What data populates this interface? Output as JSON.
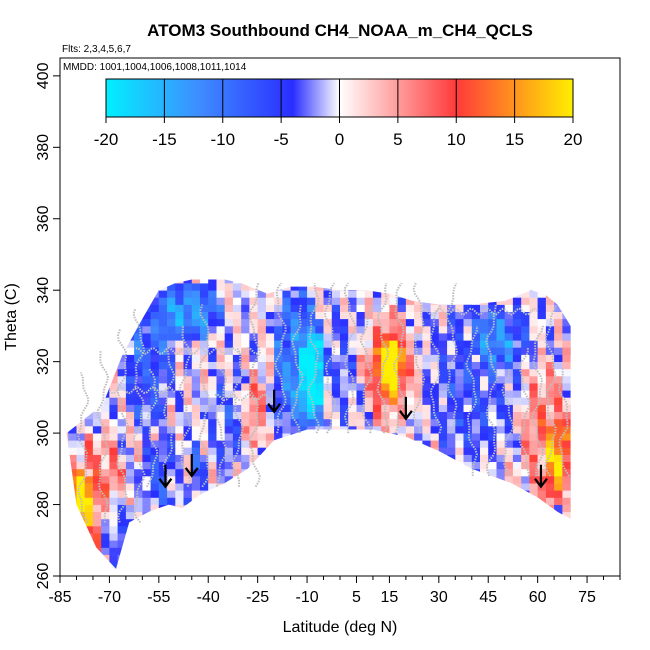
{
  "chart_data": {
    "type": "heatmap",
    "title": "ATOM3 Southbound CH4_NOAA_m_CH4_QCLS",
    "flights_label": "Flts: 2,3,4,5,6,7",
    "mmdd_label": "MMDD: 1001,1004,1006,1008,1011,1014",
    "xlabel": "Latitude (deg N)",
    "ylabel": "Theta (C)",
    "xlim": [
      -85,
      85
    ],
    "ylim": [
      260,
      405
    ],
    "x_ticks": [
      "-85",
      "-70",
      "-55",
      "-40",
      "-25",
      "-10",
      "5",
      "15",
      "30",
      "45",
      "60",
      "75"
    ],
    "x_tick_values": [
      -85,
      -70,
      -55,
      -40,
      -25,
      -10,
      5,
      15,
      30,
      45,
      60,
      75
    ],
    "y_ticks": [
      "260",
      "280",
      "300",
      "320",
      "340",
      "360",
      "380",
      "400"
    ],
    "y_tick_values": [
      260,
      280,
      300,
      320,
      340,
      360,
      380,
      400
    ],
    "colorbar": {
      "min": -20,
      "max": 20,
      "tick_labels": [
        "-20",
        "-15",
        "-10",
        "-5",
        "0",
        "5",
        "10",
        "15",
        "20"
      ],
      "tick_values": [
        -20,
        -15,
        -10,
        -5,
        0,
        5,
        10,
        15,
        20
      ],
      "colors": [
        "#00f0ff",
        "#3f8cff",
        "#2a2eff",
        "#ffffff",
        "#ff3a3a",
        "#ffee00"
      ]
    },
    "boundary_top": [
      [
        -72,
        308
      ],
      [
        -66,
        322
      ],
      [
        -60,
        332
      ],
      [
        -55,
        340
      ],
      [
        -50,
        342
      ],
      [
        -45,
        343
      ],
      [
        -40,
        343
      ],
      [
        -35,
        343
      ],
      [
        -30,
        342
      ],
      [
        -22,
        339
      ],
      [
        -15,
        341
      ],
      [
        -8,
        341
      ],
      [
        0,
        340
      ],
      [
        8,
        340
      ],
      [
        15,
        339
      ],
      [
        22,
        337
      ],
      [
        30,
        336
      ],
      [
        40,
        336
      ],
      [
        50,
        337
      ],
      [
        58,
        340
      ],
      [
        62,
        339
      ],
      [
        66,
        336
      ],
      [
        70,
        330
      ]
    ],
    "boundary_bottom": [
      [
        70,
        276
      ],
      [
        66,
        278
      ],
      [
        60,
        282
      ],
      [
        52,
        286
      ],
      [
        40,
        290
      ],
      [
        30,
        295
      ],
      [
        20,
        299
      ],
      [
        10,
        301
      ],
      [
        0,
        301
      ],
      [
        -10,
        301
      ],
      [
        -20,
        298
      ],
      [
        -28,
        290
      ],
      [
        -35,
        286
      ],
      [
        -42,
        283
      ],
      [
        -48,
        279
      ],
      [
        -52,
        280
      ],
      [
        -58,
        278
      ],
      [
        -64,
        275
      ],
      [
        -68,
        262
      ],
      [
        -74,
        268
      ],
      [
        -80,
        280
      ],
      [
        -83,
        300
      ]
    ],
    "regions": [
      {
        "lat": [
          -84,
          -64
        ],
        "theta": [
          262,
          300
        ],
        "value": 8
      },
      {
        "lat": [
          -84,
          -74
        ],
        "theta": [
          272,
          290
        ],
        "value": 14
      },
      {
        "lat": [
          -73,
          -63
        ],
        "theta": [
          262,
          285
        ],
        "value": -9
      },
      {
        "lat": [
          -66,
          -50
        ],
        "theta": [
          300,
          342
        ],
        "value": -8
      },
      {
        "lat": [
          -56,
          -36
        ],
        "theta": [
          325,
          343
        ],
        "value": -13
      },
      {
        "lat": [
          -62,
          -40
        ],
        "theta": [
          278,
          300
        ],
        "value": -7
      },
      {
        "lat": [
          -52,
          -44
        ],
        "theta": [
          280,
          300
        ],
        "value": 6
      },
      {
        "lat": [
          -40,
          -28
        ],
        "theta": [
          290,
          320
        ],
        "value": -4
      },
      {
        "lat": [
          -30,
          -22
        ],
        "theta": [
          295,
          318
        ],
        "value": 7
      },
      {
        "lat": [
          -21,
          -5
        ],
        "theta": [
          298,
          342
        ],
        "value": -12
      },
      {
        "lat": [
          -12,
          -4
        ],
        "theta": [
          300,
          330
        ],
        "value": -16
      },
      {
        "lat": [
          -5,
          6
        ],
        "theta": [
          300,
          340
        ],
        "value": -3
      },
      {
        "lat": [
          6,
          24
        ],
        "theta": [
          300,
          336
        ],
        "value": 7
      },
      {
        "lat": [
          10,
          20
        ],
        "theta": [
          308,
          328
        ],
        "value": 12
      },
      {
        "lat": [
          13,
          18
        ],
        "theta": [
          314,
          326
        ],
        "value": 16
      },
      {
        "lat": [
          25,
          55
        ],
        "theta": [
          292,
          336
        ],
        "value": -5
      },
      {
        "lat": [
          40,
          58
        ],
        "theta": [
          318,
          337
        ],
        "value": -9
      },
      {
        "lat": [
          55,
          70
        ],
        "theta": [
          278,
          320
        ],
        "value": 8
      },
      {
        "lat": [
          62,
          70
        ],
        "theta": [
          280,
          305
        ],
        "value": 11
      }
    ],
    "arrows": [
      {
        "lat": -53,
        "theta": 285
      },
      {
        "lat": -45,
        "theta": 288
      },
      {
        "lat": -20,
        "theta": 306
      },
      {
        "lat": 20,
        "theta": 304
      },
      {
        "lat": 61,
        "theta": 285
      }
    ]
  }
}
